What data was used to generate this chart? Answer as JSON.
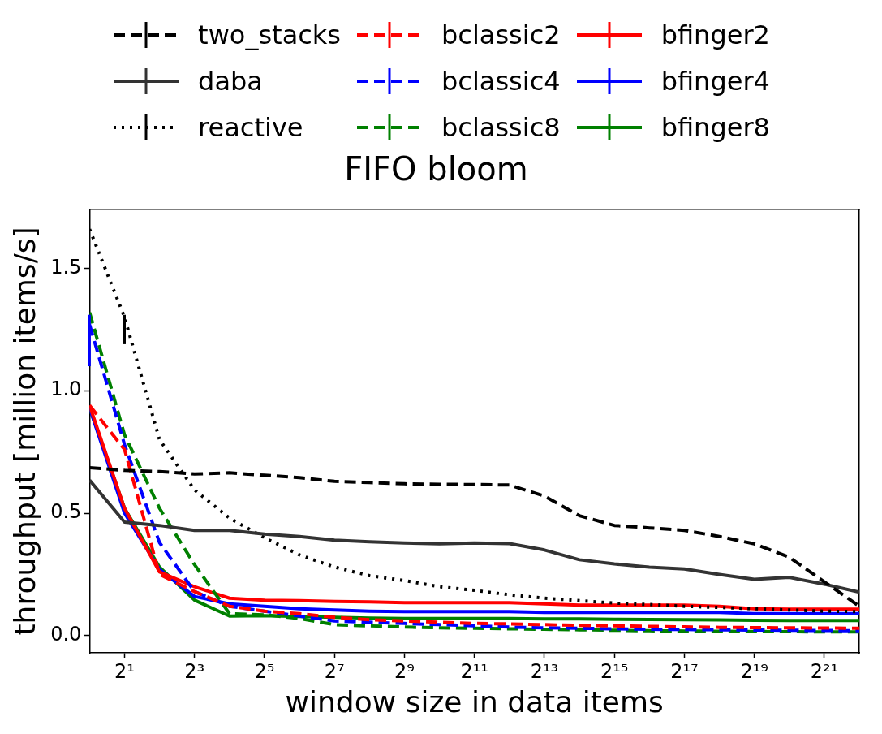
{
  "chart_data": {
    "type": "line",
    "title": "FIFO bloom",
    "xlabel": "window size in data items",
    "ylabel": "throughput [million items/s]",
    "x": [
      1,
      2,
      4,
      8,
      16,
      32,
      64,
      128,
      256,
      512,
      1024,
      2048,
      4096,
      8192,
      16384,
      32768,
      65536,
      131072,
      262144,
      524288,
      1048576,
      2097152,
      4194304
    ],
    "log": "x",
    "xlim": [
      1,
      4194304
    ],
    "xticks": [
      {
        "value": 2,
        "label": "2¹"
      },
      {
        "value": 8,
        "label": "2³"
      },
      {
        "value": 32,
        "label": "2⁵"
      },
      {
        "value": 128,
        "label": "2⁷"
      },
      {
        "value": 512,
        "label": "2⁹"
      },
      {
        "value": 2048,
        "label": "2¹¹"
      },
      {
        "value": 8192,
        "label": "2¹³"
      },
      {
        "value": 32768,
        "label": "2¹⁵"
      },
      {
        "value": 131072,
        "label": "2¹⁷"
      },
      {
        "value": 524288,
        "label": "2¹⁹"
      },
      {
        "value": 2097152,
        "label": "2²¹"
      }
    ],
    "ylim": [
      -0.07,
      1.74
    ],
    "yticks": [
      {
        "value": 0,
        "label": "0.0"
      },
      {
        "value": 0.5,
        "label": "0.5"
      },
      {
        "value": 1,
        "label": "1.0"
      },
      {
        "value": 1.5,
        "label": "1.5"
      }
    ],
    "grid": false,
    "legend": "top",
    "marker": "none",
    "series": [
      {
        "name": "two_stacks",
        "color": "#000000",
        "line_style": "dashed",
        "values": [
          0.686,
          0.675,
          0.67,
          0.66,
          0.665,
          0.655,
          0.645,
          0.63,
          0.625,
          0.62,
          0.618,
          0.617,
          0.615,
          0.57,
          0.49,
          0.45,
          0.44,
          0.43,
          0.405,
          0.375,
          0.32,
          0.22,
          0.12
        ]
      },
      {
        "name": "daba",
        "color": "#333333",
        "line_style": "solid",
        "values": [
          0.635,
          0.464,
          0.45,
          0.43,
          0.43,
          0.415,
          0.405,
          0.39,
          0.383,
          0.378,
          0.375,
          0.378,
          0.376,
          0.35,
          0.31,
          0.293,
          0.28,
          0.272,
          0.25,
          0.23,
          0.238,
          0.21,
          0.178
        ]
      },
      {
        "name": "reactive",
        "color": "#000000",
        "line_style": "dotted",
        "values": [
          1.66,
          1.3,
          0.8,
          0.595,
          0.48,
          0.4,
          0.33,
          0.28,
          0.245,
          0.225,
          0.2,
          0.185,
          0.167,
          0.153,
          0.143,
          0.133,
          0.127,
          0.12,
          0.115,
          0.11,
          0.105,
          0.1,
          0.098
        ],
        "errors": [
          null,
          [
            1.19,
            1.31
          ],
          null,
          null,
          null,
          null,
          null,
          null,
          null,
          null,
          null,
          null,
          null,
          null,
          null,
          null,
          null,
          null,
          null,
          null,
          null,
          null,
          null
        ]
      },
      {
        "name": "bclassic2",
        "color": "#ff0000",
        "line_style": "dashed",
        "values": [
          0.94,
          0.76,
          0.25,
          0.18,
          0.12,
          0.1,
          0.09,
          0.075,
          0.065,
          0.06,
          0.055,
          0.05,
          0.048,
          0.045,
          0.042,
          0.04,
          0.038,
          0.036,
          0.034,
          0.033,
          0.032,
          0.031,
          0.03
        ]
      },
      {
        "name": "bclassic4",
        "color": "#0000ff",
        "line_style": "dashed",
        "values": [
          1.27,
          0.78,
          0.38,
          0.18,
          0.12,
          0.1,
          0.08,
          0.06,
          0.055,
          0.05,
          0.045,
          0.04,
          0.035,
          0.032,
          0.03,
          0.028,
          0.026,
          0.025,
          0.024,
          0.023,
          0.022,
          0.021,
          0.02
        ],
        "errors": [
          [
            1.1,
            1.31
          ],
          null,
          null,
          null,
          null,
          null,
          null,
          null,
          null,
          null,
          null,
          null,
          null,
          null,
          null,
          null,
          null,
          null,
          null,
          null,
          null,
          null,
          null
        ]
      },
      {
        "name": "bclassic8",
        "color": "#008000",
        "line_style": "dashed",
        "values": [
          1.32,
          0.82,
          0.52,
          0.29,
          0.09,
          0.085,
          0.07,
          0.045,
          0.04,
          0.035,
          0.032,
          0.03,
          0.028,
          0.026,
          0.024,
          0.022,
          0.02,
          0.019,
          0.018,
          0.017,
          0.016,
          0.015,
          0.015
        ]
      },
      {
        "name": "bfinger2",
        "color": "#ff0000",
        "line_style": "solid",
        "values": [
          0.94,
          0.52,
          0.26,
          0.2,
          0.153,
          0.145,
          0.143,
          0.14,
          0.138,
          0.135,
          0.135,
          0.135,
          0.135,
          0.13,
          0.125,
          0.125,
          0.125,
          0.125,
          0.12,
          0.11,
          0.108,
          0.108,
          0.108
        ]
      },
      {
        "name": "bfinger4",
        "color": "#0000ff",
        "line_style": "solid",
        "values": [
          0.93,
          0.5,
          0.27,
          0.16,
          0.13,
          0.12,
          0.11,
          0.105,
          0.1,
          0.098,
          0.098,
          0.098,
          0.098,
          0.095,
          0.095,
          0.095,
          0.095,
          0.095,
          0.095,
          0.09,
          0.09,
          0.09,
          0.09
        ]
      },
      {
        "name": "bfinger8",
        "color": "#008000",
        "line_style": "solid",
        "values": [
          0.93,
          0.52,
          0.28,
          0.145,
          0.08,
          0.082,
          0.078,
          0.075,
          0.072,
          0.07,
          0.07,
          0.07,
          0.07,
          0.068,
          0.068,
          0.067,
          0.066,
          0.065,
          0.064,
          0.063,
          0.062,
          0.062,
          0.062
        ]
      }
    ]
  }
}
